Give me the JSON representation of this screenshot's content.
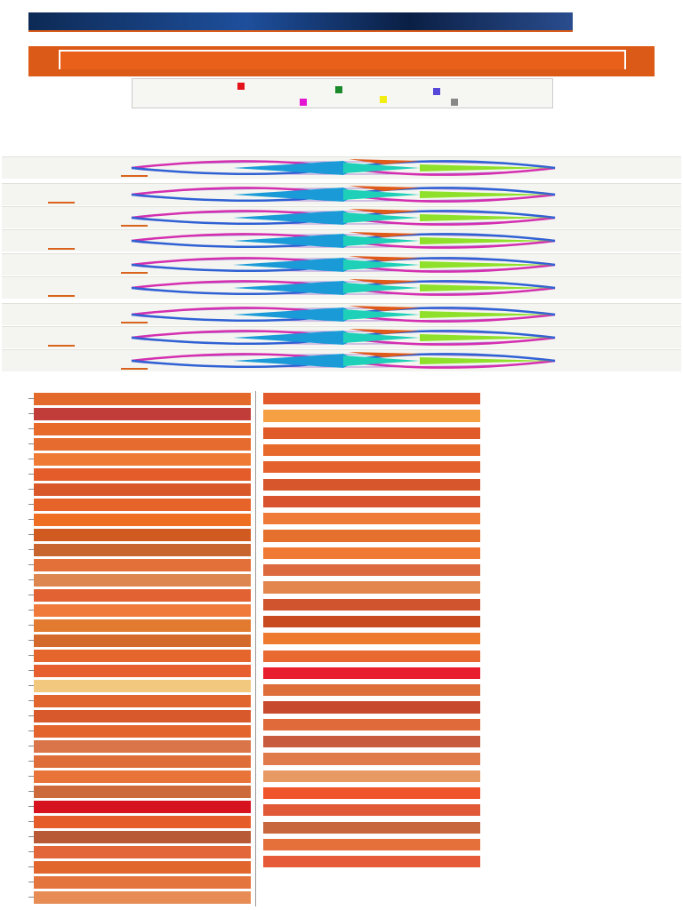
{
  "header": {
    "top_text": "",
    "banner_title": "",
    "intro_text": "",
    "page_title": ""
  },
  "legend": [
    {
      "label": "",
      "color": "#e3121b"
    },
    {
      "label": "",
      "color": "#1a8a2a"
    },
    {
      "label": "",
      "color": "#5548d9"
    },
    {
      "label": "",
      "color": "#e317d3"
    },
    {
      "label": "",
      "color": "#f2ee12"
    },
    {
      "label": "",
      "color": "#888888"
    }
  ],
  "meta": [],
  "sections": [
    {
      "heading": ""
    },
    {
      "heading": ""
    },
    {
      "heading": ""
    }
  ],
  "strips": [
    {
      "note": ""
    },
    {
      "note": ""
    },
    {
      "note": ""
    },
    {
      "note": ""
    },
    {
      "note": ""
    },
    {
      "note": ""
    },
    {
      "note": ""
    },
    {
      "note": ""
    },
    {
      "note": ""
    },
    {
      "note": ""
    }
  ],
  "colors": {
    "accent": "#dc5a18",
    "strip_bg": "#f4f5f0"
  },
  "left_bars": [
    {
      "label": "",
      "color": "#e36a2b"
    },
    {
      "label": "",
      "color": "#c13d3a"
    },
    {
      "label": "",
      "color": "#e86a2a"
    },
    {
      "label": "",
      "color": "#e56b2e"
    },
    {
      "label": "",
      "color": "#ee7a35"
    },
    {
      "label": "",
      "color": "#e35c2a"
    },
    {
      "label": "",
      "color": "#d9582a"
    },
    {
      "label": "",
      "color": "#e6632a"
    },
    {
      "label": "",
      "color": "#ee6e22"
    },
    {
      "label": "",
      "color": "#d05a1f"
    },
    {
      "label": "",
      "color": "#c8652f"
    },
    {
      "label": "",
      "color": "#e27038"
    },
    {
      "label": "",
      "color": "#dd8650"
    },
    {
      "label": "",
      "color": "#e26233"
    },
    {
      "label": "",
      "color": "#f07a3c"
    },
    {
      "label": "",
      "color": "#e27a30"
    },
    {
      "label": "",
      "color": "#d36a2b"
    },
    {
      "label": "",
      "color": "#e4662c"
    },
    {
      "label": "",
      "color": "#e85f2f"
    },
    {
      "label": "",
      "color": "#f2c77e"
    },
    {
      "label": "",
      "color": "#e0662e"
    },
    {
      "label": "",
      "color": "#d85a2c"
    },
    {
      "label": "",
      "color": "#e3642c"
    },
    {
      "label": "",
      "color": "#d97548"
    },
    {
      "label": "",
      "color": "#df6d39"
    },
    {
      "label": "",
      "color": "#e8743a"
    },
    {
      "label": "",
      "color": "#cc6a3b"
    },
    {
      "label": "",
      "color": "#d5121e"
    },
    {
      "label": "",
      "color": "#e55c2a"
    },
    {
      "label": "",
      "color": "#b85a36"
    },
    {
      "label": "",
      "color": "#e2663a"
    },
    {
      "label": "",
      "color": "#e0662e"
    },
    {
      "label": "",
      "color": "#e4753f"
    },
    {
      "label": "",
      "color": "#e88c55"
    }
  ],
  "right_bars": [
    {
      "label": "",
      "color": "#e35a2a"
    },
    {
      "label": "",
      "color": "#f6a044"
    },
    {
      "label": "",
      "color": "#e05a2a"
    },
    {
      "label": "",
      "color": "#e86a2a"
    },
    {
      "label": "",
      "color": "#e4602c"
    },
    {
      "label": "",
      "color": "#d8562c"
    },
    {
      "label": "",
      "color": "#d9542e"
    },
    {
      "label": "",
      "color": "#ef7a38"
    },
    {
      "label": "",
      "color": "#e6702e"
    },
    {
      "label": "",
      "color": "#f07a34"
    },
    {
      "label": "",
      "color": "#dc6a3e"
    },
    {
      "label": "",
      "color": "#e2864e"
    },
    {
      "label": "",
      "color": "#d0542e"
    },
    {
      "label": "",
      "color": "#c84a1e"
    },
    {
      "label": "",
      "color": "#ee7a30"
    },
    {
      "label": "",
      "color": "#e86a30"
    },
    {
      "label": "",
      "color": "#e81e2e"
    },
    {
      "label": "",
      "color": "#de6e3a"
    },
    {
      "label": "",
      "color": "#c84a2e"
    },
    {
      "label": "",
      "color": "#e06a3a"
    },
    {
      "label": "",
      "color": "#c85a3e"
    },
    {
      "label": "",
      "color": "#e07a4a"
    },
    {
      "label": "",
      "color": "#e89a64"
    },
    {
      "label": "",
      "color": "#f0542a"
    },
    {
      "label": "",
      "color": "#e05a38"
    },
    {
      "label": "",
      "color": "#c8663e"
    },
    {
      "label": "",
      "color": "#e6703a"
    },
    {
      "label": "",
      "color": "#e65a3a"
    }
  ]
}
